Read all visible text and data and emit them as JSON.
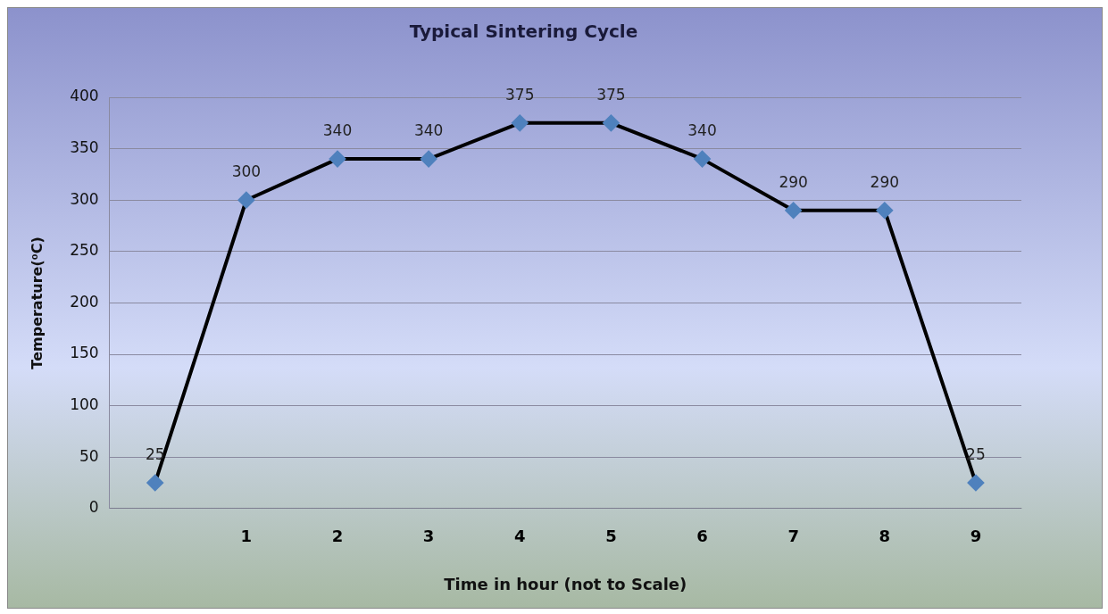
{
  "chart_data": {
    "type": "line",
    "title": "Typical Sintering Cycle",
    "xlabel": "Time in hour (not to Scale)",
    "ylabel": "Temperature(⁰C)",
    "categories": [
      null,
      "1",
      "2",
      "3",
      "4",
      "5",
      "6",
      "7",
      "8",
      "9"
    ],
    "series": [
      {
        "color": "#000000",
        "colors": [
          "#4f81bd",
          "#4f81bd",
          "#4f81bd",
          "#4f81bd",
          "#4f81bd",
          "#4f81bd",
          "#4f81bd",
          "#4f81bd",
          "#4f81bd",
          "#4f81bd"
        ],
        "values": [
          25,
          300,
          340,
          340,
          375,
          375,
          340,
          290,
          290,
          25
        ]
      }
    ],
    "marker": "diamond",
    "line_style": "solid",
    "ylim": [
      0,
      400
    ],
    "yticks": [
      0,
      50,
      100,
      150,
      200,
      250,
      300,
      350,
      400
    ],
    "grid": "y",
    "legend": false,
    "data_labels": true
  }
}
